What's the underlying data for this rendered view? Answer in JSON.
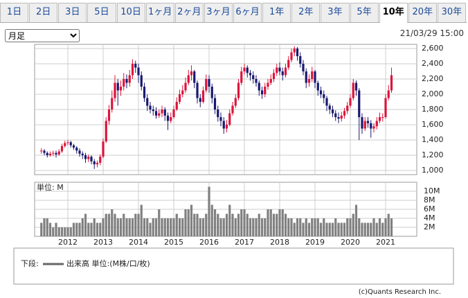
{
  "tabs": [
    "1日",
    "2日",
    "3日",
    "5日",
    "10日",
    "1ヶ月",
    "2ヶ月",
    "3ヶ月",
    "6ヶ月",
    "1年",
    "2年",
    "3年",
    "5年",
    "10年",
    "20年",
    "30年"
  ],
  "selected_tab": 13,
  "period_select": "月足",
  "timestamp": "21/03/29 15:00",
  "chart_data": [
    {
      "type": "candlestick",
      "open": [
        1250,
        1260,
        1230,
        1200,
        1220,
        1230,
        1210,
        1250,
        1320,
        1360,
        1370,
        1330,
        1300,
        1260,
        1220,
        1200,
        1150,
        1180,
        1120,
        1080,
        1100,
        1180,
        1380,
        1650,
        1800,
        1950,
        2150,
        2050,
        2100,
        2200,
        2150,
        2250,
        2400,
        2350,
        2250,
        2100,
        1950,
        1850,
        1800,
        1780,
        1720,
        1750,
        1800,
        1720,
        1650,
        1700,
        1800,
        1900,
        2000,
        2050,
        2150,
        2250,
        2300,
        2150,
        1950,
        1900,
        2050,
        2200,
        2100,
        1950,
        1800,
        1700,
        1650,
        1550,
        1600,
        1750,
        1850,
        1950,
        2150,
        2300,
        2350,
        2280,
        2250,
        2200,
        2150,
        2050,
        2000,
        2100,
        2150,
        2200,
        2280,
        2350,
        2300,
        2250,
        2350,
        2450,
        2550,
        2600,
        2500,
        2400,
        2300,
        2150,
        2200,
        2300,
        2150,
        2050,
        2000,
        1950,
        1850,
        1800,
        1750,
        1700,
        1680,
        1720,
        1780,
        1850,
        1950,
        2150,
        2050,
        1700,
        1550,
        1650,
        1620,
        1550,
        1580,
        1650,
        1700,
        1700,
        1950,
        2050
      ],
      "high": [
        1290,
        1280,
        1250,
        1250,
        1260,
        1260,
        1280,
        1350,
        1390,
        1400,
        1390,
        1350,
        1320,
        1290,
        1250,
        1230,
        1210,
        1200,
        1150,
        1130,
        1210,
        1420,
        1700,
        1860,
        2050,
        2250,
        2200,
        2180,
        2280,
        2260,
        2320,
        2460,
        2440,
        2400,
        2300,
        2150,
        2000,
        1900,
        1850,
        1830,
        1800,
        1850,
        1830,
        1760,
        1760,
        1850,
        1960,
        2060,
        2120,
        2220,
        2320,
        2380,
        2320,
        2180,
        2000,
        2100,
        2260,
        2250,
        2140,
        2000,
        1850,
        1760,
        1700,
        1660,
        1800,
        1900,
        2000,
        2200,
        2360,
        2400,
        2380,
        2320,
        2300,
        2250,
        2180,
        2100,
        2150,
        2200,
        2260,
        2330,
        2400,
        2420,
        2350,
        2400,
        2500,
        2600,
        2630,
        2620,
        2550,
        2450,
        2340,
        2260,
        2360,
        2320,
        2180,
        2100,
        2050,
        1980,
        1880,
        1850,
        1790,
        1760,
        1770,
        1820,
        1900,
        2000,
        2200,
        2180,
        2080,
        1750,
        1700,
        1700,
        1660,
        1620,
        1700,
        1760,
        1750,
        2000,
        2120,
        2350
      ],
      "low": [
        1220,
        1200,
        1170,
        1180,
        1190,
        1170,
        1190,
        1230,
        1300,
        1330,
        1300,
        1270,
        1220,
        1180,
        1150,
        1100,
        1110,
        1080,
        1020,
        1040,
        1070,
        1160,
        1360,
        1600,
        1760,
        1900,
        1850,
        1980,
        2050,
        2080,
        2100,
        2200,
        2280,
        2150,
        2050,
        1900,
        1780,
        1750,
        1720,
        1680,
        1690,
        1700,
        1650,
        1530,
        1620,
        1680,
        1780,
        1870,
        1960,
        2020,
        2120,
        2180,
        2080,
        1880,
        1830,
        1880,
        2020,
        2020,
        1880,
        1740,
        1640,
        1580,
        1480,
        1500,
        1580,
        1720,
        1820,
        1920,
        2120,
        2260,
        2220,
        2180,
        2140,
        2100,
        1980,
        1940,
        1960,
        2060,
        2120,
        2160,
        2240,
        2250,
        2180,
        2220,
        2320,
        2420,
        2500,
        2440,
        2350,
        2250,
        2080,
        2100,
        2160,
        2080,
        1980,
        1950,
        1880,
        1780,
        1740,
        1700,
        1650,
        1620,
        1640,
        1680,
        1740,
        1820,
        1920,
        1980,
        1400,
        1480,
        1520,
        1560,
        1430,
        1500,
        1540,
        1620,
        1640,
        1680,
        1920,
        2020
      ],
      "close": [
        1260,
        1230,
        1200,
        1220,
        1230,
        1210,
        1250,
        1320,
        1360,
        1370,
        1330,
        1300,
        1260,
        1220,
        1200,
        1150,
        1180,
        1120,
        1080,
        1100,
        1180,
        1380,
        1650,
        1800,
        1950,
        2150,
        2050,
        2100,
        2200,
        2150,
        2250,
        2400,
        2350,
        2250,
        2100,
        1950,
        1850,
        1800,
        1780,
        1720,
        1750,
        1800,
        1720,
        1650,
        1700,
        1800,
        1900,
        2000,
        2050,
        2150,
        2250,
        2300,
        2150,
        1950,
        1900,
        2050,
        2200,
        2100,
        1950,
        1800,
        1700,
        1650,
        1550,
        1600,
        1750,
        1850,
        1950,
        2150,
        2300,
        2350,
        2280,
        2250,
        2200,
        2150,
        2050,
        2000,
        2100,
        2150,
        2200,
        2280,
        2350,
        2300,
        2250,
        2350,
        2450,
        2550,
        2600,
        2500,
        2400,
        2300,
        2150,
        2200,
        2300,
        2150,
        2050,
        2000,
        1950,
        1850,
        1800,
        1750,
        1700,
        1680,
        1720,
        1780,
        1850,
        1950,
        2150,
        2050,
        1700,
        1550,
        1650,
        1620,
        1550,
        1580,
        1650,
        1700,
        1700,
        1950,
        2050,
        2250
      ],
      "up_color": "#dc143c",
      "down_color": "#191970",
      "ylim": [
        945,
        2655
      ],
      "yticks": [
        {
          "value": 1000,
          "label": "1,000"
        },
        {
          "value": 1200,
          "label": "1,200"
        },
        {
          "value": 1400,
          "label": "1,400"
        },
        {
          "value": 1600,
          "label": "1,600"
        },
        {
          "value": 1800,
          "label": "1,800"
        },
        {
          "value": 2000,
          "label": "2,000"
        },
        {
          "value": 2200,
          "label": "2,200"
        },
        {
          "value": 2400,
          "label": "2,400"
        },
        {
          "value": 2600,
          "label": "2,600"
        }
      ],
      "grid": true
    },
    {
      "type": "bar",
      "unit_label": "単位: M",
      "categories": [
        null,
        null,
        null,
        null,
        null,
        null,
        null,
        null,
        null,
        "2012",
        null,
        null,
        null,
        null,
        null,
        null,
        null,
        null,
        null,
        null,
        null,
        "2013",
        null,
        null,
        null,
        null,
        null,
        null,
        null,
        null,
        null,
        null,
        null,
        "2014",
        null,
        null,
        null,
        null,
        null,
        null,
        null,
        null,
        null,
        null,
        null,
        "2015",
        null,
        null,
        null,
        null,
        null,
        null,
        null,
        null,
        null,
        null,
        null,
        "2016",
        null,
        null,
        null,
        null,
        null,
        null,
        null,
        null,
        null,
        null,
        null,
        "2017",
        null,
        null,
        null,
        null,
        null,
        null,
        null,
        null,
        null,
        null,
        null,
        "2018",
        null,
        null,
        null,
        null,
        null,
        null,
        null,
        null,
        null,
        null,
        null,
        "2019",
        null,
        null,
        null,
        null,
        null,
        null,
        null,
        null,
        null,
        null,
        null,
        "2020",
        null,
        null,
        null,
        null,
        null,
        null,
        null,
        null,
        null,
        null,
        null,
        "2021",
        null,
        null
      ],
      "values": [
        3,
        4,
        4,
        3,
        2,
        3,
        2,
        2,
        2,
        2,
        2,
        3,
        3,
        3,
        4,
        5,
        3,
        3,
        4,
        3,
        3,
        4,
        5,
        5,
        6,
        5,
        4,
        4,
        5,
        4,
        4,
        4,
        5,
        5,
        7,
        4,
        4,
        3,
        4,
        4,
        6,
        4,
        4,
        4,
        4,
        4,
        5,
        4,
        4,
        6,
        6,
        7,
        5,
        5,
        4,
        4,
        5,
        11,
        7,
        6,
        5,
        4,
        4,
        5,
        7,
        5,
        4,
        5,
        6,
        6,
        5,
        4,
        4,
        4,
        5,
        4,
        4,
        6,
        6,
        5,
        5,
        6,
        6,
        5,
        4,
        4,
        3,
        4,
        4,
        3,
        4,
        3,
        4,
        4,
        4,
        3,
        4,
        3,
        3,
        3,
        4,
        3,
        3,
        3,
        4,
        4,
        5,
        7,
        4,
        3,
        3,
        3,
        3,
        4,
        3,
        4,
        3,
        4,
        5,
        4
      ],
      "color": "#808080",
      "ylim": [
        0,
        12
      ],
      "yticks": [
        {
          "value": 2,
          "label": "2M"
        },
        {
          "value": 4,
          "label": "4M"
        },
        {
          "value": 6,
          "label": "6M"
        },
        {
          "value": 8,
          "label": "8M"
        },
        {
          "value": 10,
          "label": "10M"
        }
      ],
      "grid": true
    }
  ],
  "legend": {
    "prefix": "下段:",
    "label": "出来高 単位:(M株/口/枚)"
  },
  "copyright": "(c)Quants Research Inc."
}
